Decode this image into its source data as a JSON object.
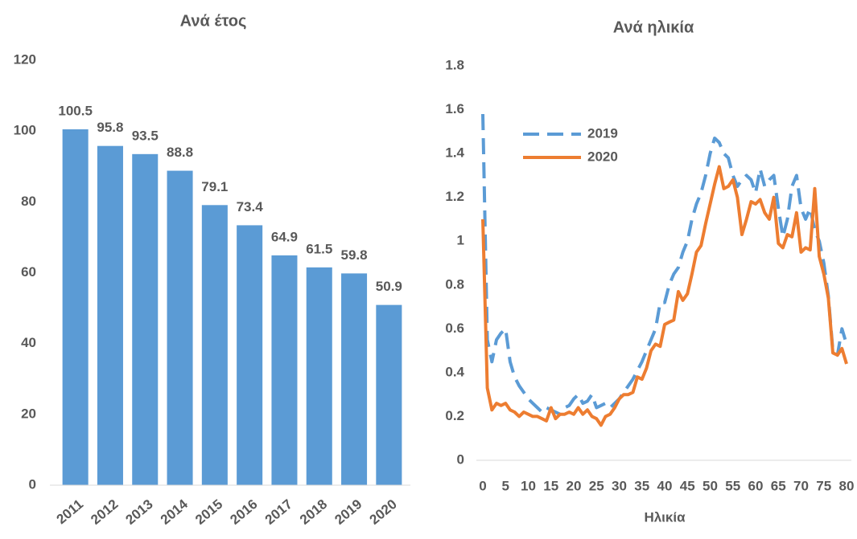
{
  "chart_data": [
    {
      "type": "bar",
      "title": "Ανά έτος",
      "categories": [
        "2011",
        "2012",
        "2013",
        "2014",
        "2015",
        "2016",
        "2017",
        "2018",
        "2019",
        "2020"
      ],
      "values": [
        100.5,
        95.8,
        93.5,
        88.8,
        79.1,
        73.4,
        64.9,
        61.5,
        59.8,
        50.9
      ],
      "color": "#5b9bd5",
      "ylim": [
        0,
        120
      ],
      "yticks": [
        0,
        20,
        40,
        60,
        80,
        100,
        120
      ],
      "grid": false
    },
    {
      "type": "line",
      "title": "Ανά ηλικία",
      "xlabel": "Ηλικία",
      "x": [
        0,
        1,
        2,
        3,
        4,
        5,
        6,
        7,
        8,
        9,
        10,
        11,
        12,
        13,
        14,
        15,
        16,
        17,
        18,
        19,
        20,
        21,
        22,
        23,
        24,
        25,
        26,
        27,
        28,
        29,
        30,
        31,
        32,
        33,
        34,
        35,
        36,
        37,
        38,
        39,
        40,
        41,
        42,
        43,
        44,
        45,
        46,
        47,
        48,
        49,
        50,
        51,
        52,
        53,
        54,
        55,
        56,
        57,
        58,
        59,
        60,
        61,
        62,
        63,
        64,
        65,
        66,
        67,
        68,
        69,
        70,
        71,
        72,
        73,
        74,
        75,
        76,
        77,
        78,
        79,
        80
      ],
      "series": [
        {
          "name": "2019",
          "color": "#5b9bd5",
          "dashed": true,
          "values": [
            1.58,
            0.55,
            0.45,
            0.55,
            0.58,
            0.6,
            0.45,
            0.38,
            0.34,
            0.31,
            0.28,
            0.26,
            0.24,
            0.22,
            0.24,
            0.23,
            0.22,
            0.21,
            0.24,
            0.25,
            0.28,
            0.3,
            0.26,
            0.27,
            0.3,
            0.24,
            0.25,
            0.26,
            0.24,
            0.26,
            0.28,
            0.31,
            0.34,
            0.37,
            0.41,
            0.45,
            0.5,
            0.55,
            0.6,
            0.72,
            0.72,
            0.8,
            0.85,
            0.88,
            0.95,
            1.0,
            1.1,
            1.17,
            1.22,
            1.3,
            1.4,
            1.47,
            1.45,
            1.4,
            1.38,
            1.3,
            1.25,
            1.28,
            1.3,
            1.28,
            1.22,
            1.33,
            1.25,
            1.28,
            1.3,
            1.15,
            1.02,
            1.1,
            1.25,
            1.3,
            1.15,
            1.1,
            1.15,
            1.05,
            1.0,
            0.9,
            0.75,
            0.5,
            0.48,
            0.6,
            0.53
          ]
        },
        {
          "name": "2020",
          "color": "#ed7d31",
          "dashed": false,
          "values": [
            1.1,
            0.33,
            0.23,
            0.26,
            0.25,
            0.26,
            0.23,
            0.22,
            0.2,
            0.22,
            0.21,
            0.2,
            0.2,
            0.19,
            0.18,
            0.24,
            0.19,
            0.21,
            0.21,
            0.22,
            0.21,
            0.24,
            0.21,
            0.23,
            0.2,
            0.19,
            0.16,
            0.2,
            0.21,
            0.24,
            0.28,
            0.3,
            0.3,
            0.31,
            0.38,
            0.37,
            0.42,
            0.5,
            0.53,
            0.52,
            0.62,
            0.63,
            0.64,
            0.77,
            0.73,
            0.76,
            0.85,
            0.95,
            0.98,
            1.08,
            1.17,
            1.26,
            1.34,
            1.24,
            1.25,
            1.28,
            1.2,
            1.03,
            1.1,
            1.18,
            1.17,
            1.19,
            1.13,
            1.1,
            1.2,
            0.99,
            0.97,
            1.03,
            1.02,
            1.13,
            0.95,
            0.97,
            0.96,
            1.24,
            0.93,
            0.85,
            0.74,
            0.49,
            0.48,
            0.51,
            0.44
          ]
        }
      ],
      "xlim": [
        0,
        80
      ],
      "xticks": [
        0,
        5,
        10,
        15,
        20,
        25,
        30,
        35,
        40,
        45,
        50,
        55,
        60,
        65,
        70,
        75,
        80
      ],
      "ylim": [
        0,
        1.8
      ],
      "yticks": [
        0,
        0.2,
        0.4,
        0.6,
        0.8,
        1,
        1.2,
        1.4,
        1.6,
        1.8
      ],
      "grid": false,
      "legend": "upper left"
    }
  ]
}
